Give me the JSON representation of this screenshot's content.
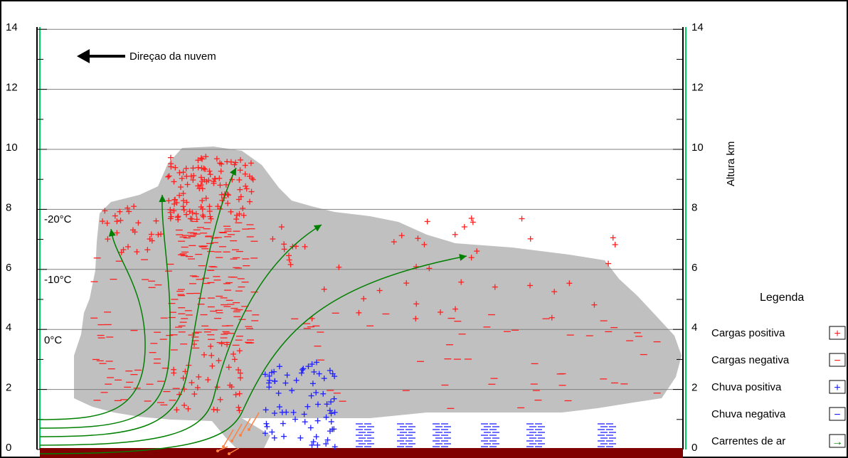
{
  "axis": {
    "left_ticks": [
      "14",
      "12",
      "10",
      "8",
      "6",
      "4",
      "2",
      "0"
    ],
    "right_ticks": [
      "14",
      "12",
      "10",
      "8",
      "6",
      "4",
      "2",
      "0"
    ],
    "right_label": "Altura km"
  },
  "direction_label": "Direçao da nuvem",
  "temperatures": [
    "-20°C",
    "-10°C",
    "0°C"
  ],
  "legend": {
    "title": "Legenda",
    "items": [
      {
        "label": "Cargas positiva",
        "symbol": "+",
        "color": "#ff2020"
      },
      {
        "label": "Cargas negativa",
        "symbol": "−",
        "color": "#ff2020"
      },
      {
        "label": "Chuva positiva",
        "symbol": "+",
        "color": "#2020ff"
      },
      {
        "label": "Chuva negativa",
        "symbol": "−",
        "color": "#2020ff"
      },
      {
        "label": "Carrentes de ar",
        "symbol": "→",
        "color": "#008000"
      }
    ]
  },
  "colors": {
    "cloud": "#c0c0c0",
    "positive_charge": "#ff2020",
    "negative_charge": "#ff2020",
    "rain": "#2020ff",
    "air_current": "#008000",
    "downdraft": "#ff8040",
    "ground": "#800000",
    "gridline": "#808080"
  }
}
